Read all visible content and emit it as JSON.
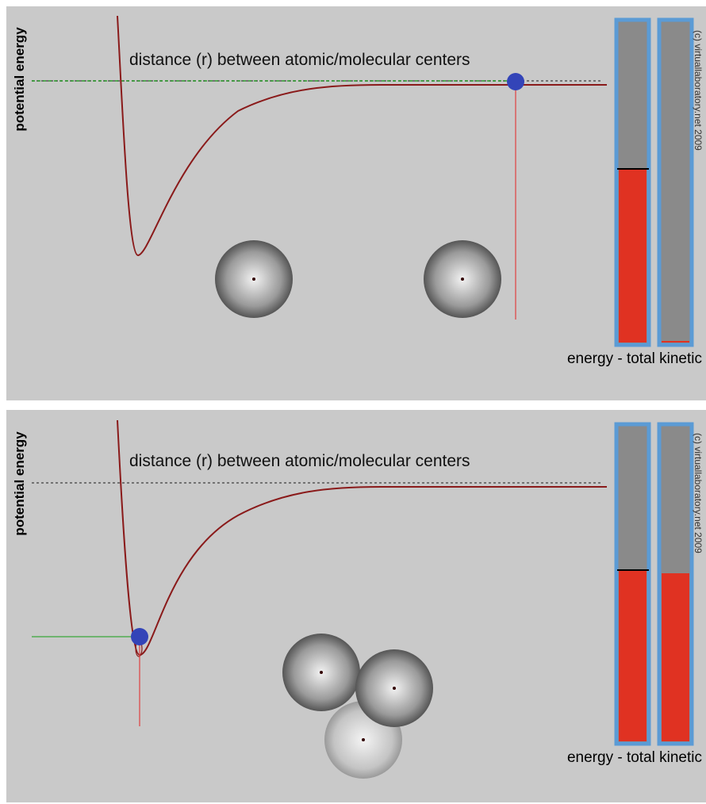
{
  "panels": [
    {
      "y_axis_label": "potential energy",
      "x_axis_label": "distance (r) between atomic/molecular centers",
      "copyright": "(c) virtuallaboratory.net 2009",
      "bar_label": "energy - total kinetic"
    },
    {
      "y_axis_label": "potential energy",
      "x_axis_label": "distance (r) between atomic/molecular centers",
      "copyright": "(c) virtuallaboratory.net 2009",
      "bar_label": "energy - total kinetic"
    }
  ]
}
